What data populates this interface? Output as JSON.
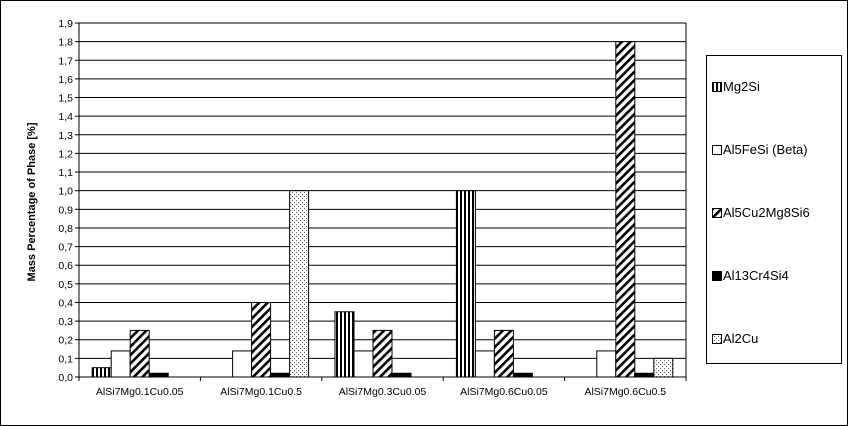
{
  "chart_data": {
    "type": "bar",
    "title": "",
    "xlabel": "",
    "ylabel": "Mass Percentage of Phase [%]",
    "ylim": [
      0,
      1.9
    ],
    "ytick_step": 0.1,
    "ytick_labels": [
      "0,0",
      "0,1",
      "0,2",
      "0,3",
      "0,4",
      "0,5",
      "0,6",
      "0,7",
      "0,8",
      "0,9",
      "1,0",
      "1,1",
      "1,2",
      "1,3",
      "1,4",
      "1,5",
      "1,6",
      "1,7",
      "1,8",
      "1,9"
    ],
    "grid": true,
    "legend_position": "right",
    "categories": [
      "AlSi7Mg0.1Cu0.05",
      "AlSi7Mg0.1Cu0.5",
      "AlSi7Mg0.3Cu0.05",
      "AlSi7Mg0.6Cu0.05",
      "AlSi7Mg0.6Cu0.5"
    ],
    "series": [
      {
        "name": "Mg2Si",
        "pattern": "vertical-stripes",
        "values": [
          0.05,
          0,
          0.35,
          1.0,
          0
        ]
      },
      {
        "name": "Al5FeSi (Beta)",
        "pattern": "white",
        "values": [
          0.14,
          0.14,
          0.14,
          0.14,
          0.14
        ]
      },
      {
        "name": "Al5Cu2Mg8Si6",
        "pattern": "diagonal-stripes",
        "values": [
          0.25,
          0.4,
          0.25,
          0.25,
          1.8
        ]
      },
      {
        "name": "Al13Cr4Si4",
        "pattern": "solid-black",
        "values": [
          0.02,
          0.02,
          0.02,
          0.02,
          0.02
        ]
      },
      {
        "name": "Al2Cu",
        "pattern": "dots",
        "values": [
          0,
          1.0,
          0,
          0,
          0.1
        ]
      }
    ]
  }
}
